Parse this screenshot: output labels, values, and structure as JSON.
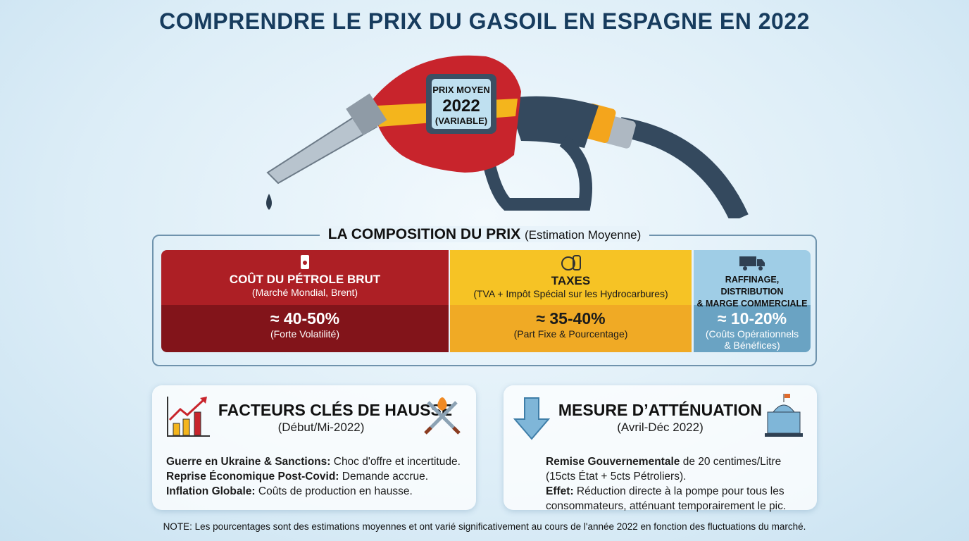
{
  "title": "COMPRENDRE LE PRIX DU GASOIL EN ESPAGNE EN 2022",
  "pump": {
    "line1": "PRIX MOYEN",
    "line2": "2022",
    "line3": "(VARIABLE)"
  },
  "composition": {
    "title": "LA COMPOSITION DU PRIX",
    "subtitle": "(Estimation Moyenne)",
    "segments": [
      {
        "name": "COÛT DU PÉTROLE BRUT",
        "desc": "(Marché Mondial, Brent)",
        "pct": "≈ 40-50%",
        "note": "(Forte Volatilité)",
        "icon": "oil-barrel-icon",
        "color": "#ad1f25"
      },
      {
        "name": "TAXES",
        "desc": "(TVA + Impôt Spécial sur les Hydrocarbures)",
        "pct": "≈ 35-40%",
        "note": "(Part Fixe & Pourcentage)",
        "icon": "coins-icon",
        "color": "#f6c325"
      },
      {
        "name": "RAFFINAGE, DISTRIBUTION",
        "name2": "& MARGE COMMERCIALE",
        "pct": "≈ 10-20%",
        "note": "(Coûts Opérationnels",
        "note2": "& Bénéfices)",
        "icon": "truck-icon",
        "color": "#9fcde6"
      }
    ]
  },
  "factors": {
    "title": "FACTEURS CLÉS DE HAUSSE",
    "subtitle": "(Début/Mi-2022)",
    "items": [
      {
        "bold": "Guerre en Ukraine & Sanctions:",
        "text": " Choc d'offre et incertitude."
      },
      {
        "bold": "Reprise Économique Post-Covid:",
        "text": " Demande accrue."
      },
      {
        "bold": "Inflation Globale:",
        "text": " Coûts de production en hausse."
      }
    ]
  },
  "mitigation": {
    "title": "MESURE D’ATTÉNUATION",
    "subtitle": "(Avril-Déc 2022)",
    "p1_bold": "Remise Gouvernementale",
    "p1_text": " de 20 centimes/Litre",
    "p1_line2": "(15cts État + 5cts Pétroliers).",
    "p2_bold": "Effet:",
    "p2_text": " Réduction directe à la pompe pour tous les",
    "p2_line2": "consommateurs, atténuant temporairement le pic."
  },
  "note": "NOTE: Les pourcentages sont des estimations moyennes et ont varié significativement au cours de l'année 2022 en fonction des fluctuations du marché."
}
